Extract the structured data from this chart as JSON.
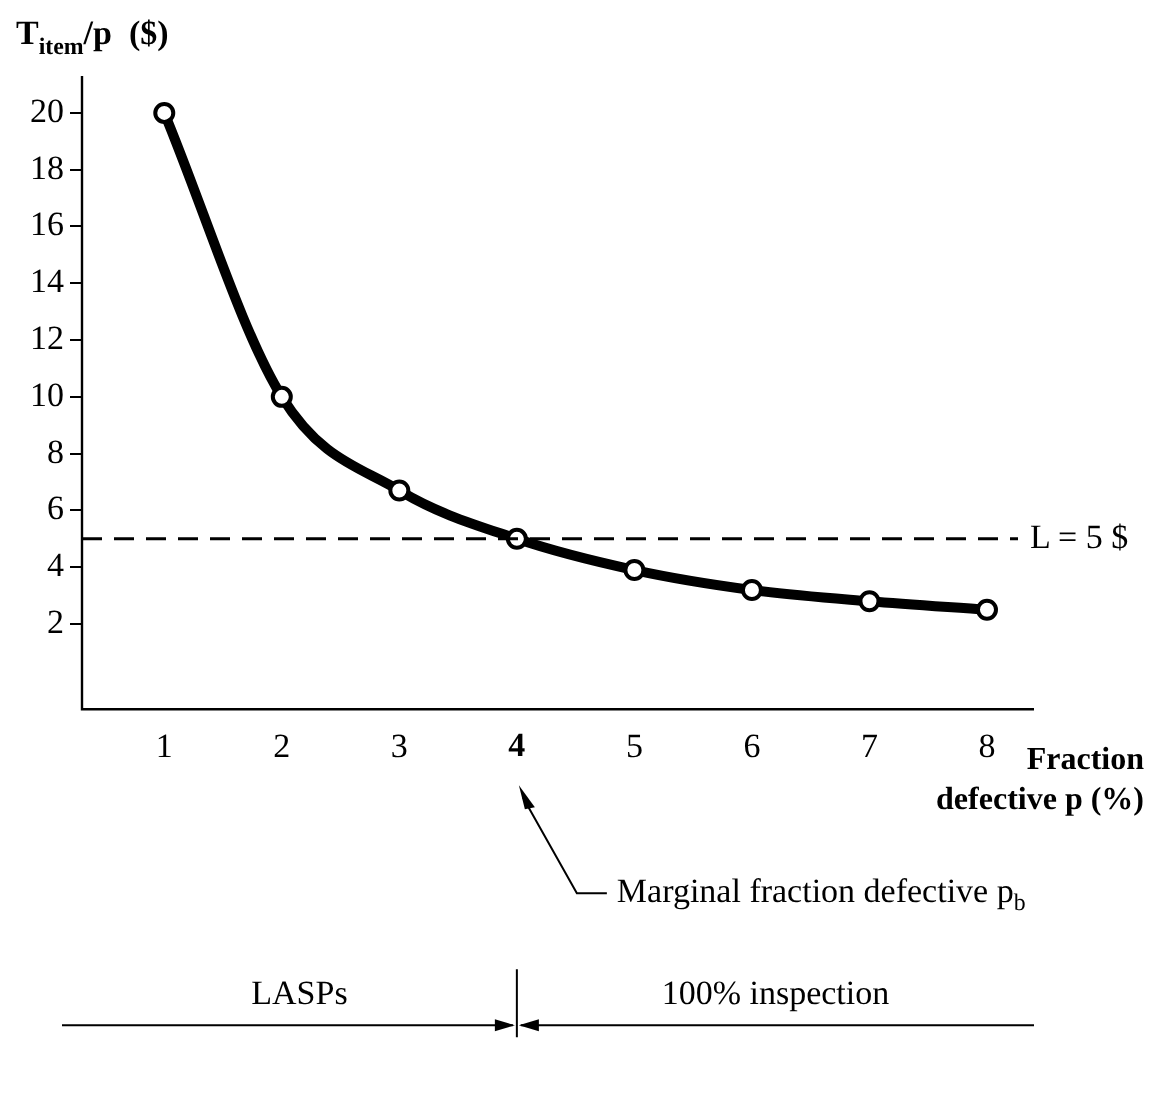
{
  "chart_data": {
    "type": "line",
    "ylabel": "T$_{item}$/p  ($)",
    "xlabel": "Fraction defective p (%)",
    "x": [
      1,
      2,
      3,
      4,
      5,
      6,
      7,
      8
    ],
    "series": [
      {
        "color": "#000000",
        "values": [
          20,
          10,
          6.7,
          5,
          3.9,
          3.2,
          2.8,
          2.5
        ]
      }
    ],
    "xlim": [
      0.3,
      8.4
    ],
    "xticks": [
      1,
      2,
      3,
      4,
      5,
      6,
      7,
      8
    ],
    "ylim": [
      -1,
      21.3
    ],
    "yticks": [
      2,
      4,
      6,
      8,
      10,
      12,
      14,
      16,
      18,
      20
    ],
    "ref_lines": [
      {
        "axis": "y",
        "value": 5,
        "label": "L = 5 $",
        "line_style": "dashed"
      }
    ],
    "annotations": [
      "Marginal fraction defective p$_{b}$",
      "LASPs",
      "100% inspection"
    ],
    "marker": "circle",
    "line_style": "solid",
    "grid": false,
    "legend": false
  }
}
